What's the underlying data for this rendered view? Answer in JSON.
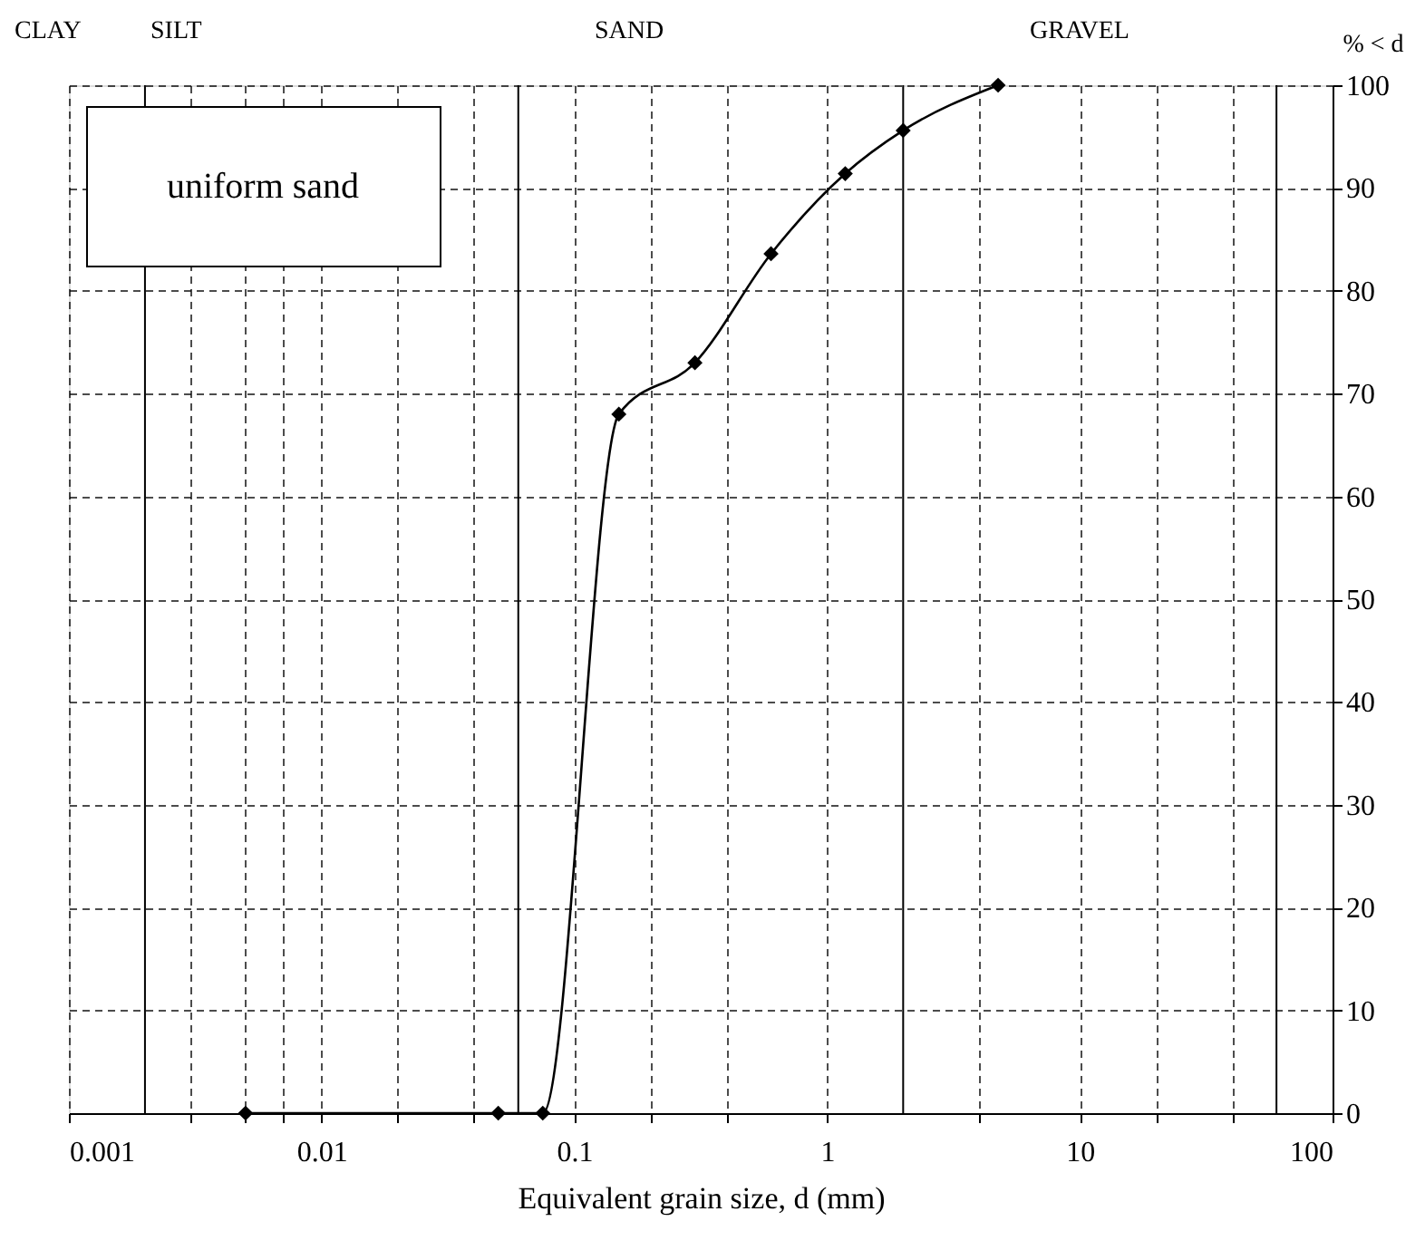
{
  "chart_data": {
    "type": "line",
    "xlabel": "Equivalent grain size, d (mm)",
    "ylabel": "% < d",
    "annotations": [
      "CLAY",
      "SILT",
      "SAND",
      "GRAVEL",
      "uniform sand"
    ],
    "series": [
      {
        "color": "#000000",
        "x": [
          0.005,
          0.05,
          0.075,
          0.15,
          0.3,
          0.6,
          1.18,
          2,
          4.75
        ],
        "values": [
          0,
          0,
          0,
          68,
          73,
          83.6,
          91.4,
          95.6,
          100
        ]
      }
    ],
    "marker": "diamond",
    "log": "x",
    "xlim": [
      0.001,
      100
    ],
    "ylim": [
      0,
      100
    ],
    "xticks": [
      0.001,
      {
        "value": 0.003,
        "label": null
      },
      {
        "value": 0.005,
        "label": null
      },
      {
        "value": 0.007,
        "label": null
      },
      0.01,
      {
        "value": 0.02,
        "label": null
      },
      {
        "value": 0.04,
        "label": null
      },
      0.1,
      {
        "value": 0.2,
        "label": null
      },
      {
        "value": 0.4,
        "label": null
      },
      1,
      {
        "value": 4,
        "label": null
      },
      10,
      {
        "value": 20,
        "label": null
      },
      {
        "value": 40,
        "label": null
      },
      100
    ],
    "yticks": [
      0,
      10,
      20,
      30,
      40,
      50,
      60,
      70,
      80,
      90,
      100
    ],
    "grid": true,
    "ref_lines": [
      {
        "axis": "x",
        "value": 0.002,
        "line_style": "solid"
      },
      {
        "axis": "x",
        "value": 0.06,
        "line_style": "solid"
      },
      {
        "axis": "x",
        "value": 2,
        "line_style": "solid"
      },
      {
        "axis": "x",
        "value": 60,
        "line_style": "solid"
      }
    ]
  }
}
